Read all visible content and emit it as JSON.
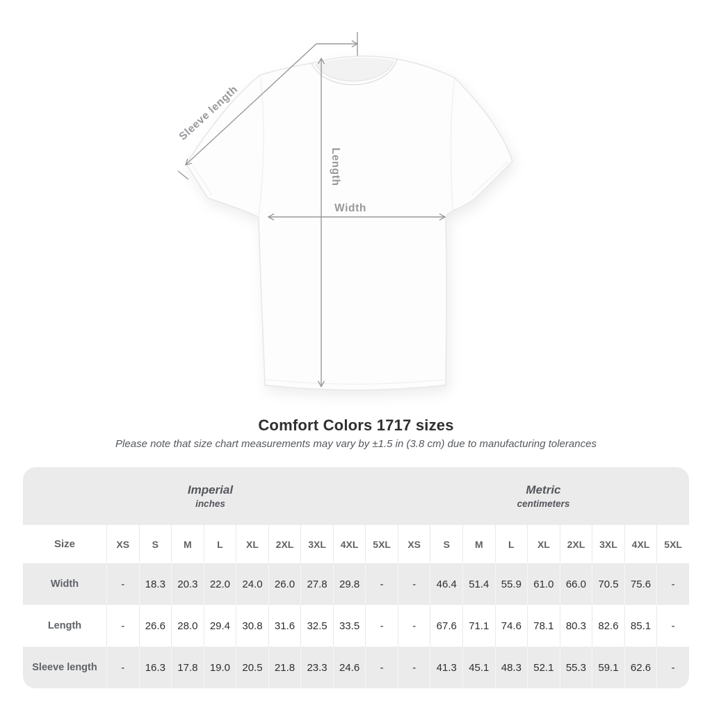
{
  "heading": {
    "title": "Comfort Colors 1717 sizes",
    "subtitle": "Please note that size chart measurements may vary by ±1.5 in (3.8 cm) due to manufacturing tolerances"
  },
  "diagram": {
    "labels": {
      "sleeve_length": "Sleeve length",
      "length": "Length",
      "width": "Width"
    }
  },
  "table": {
    "corner_label": "Size",
    "unit_groups": [
      {
        "name": "Imperial",
        "unit": "inches"
      },
      {
        "name": "Metric",
        "unit": "centimeters"
      }
    ],
    "sizes": [
      "XS",
      "S",
      "M",
      "L",
      "XL",
      "2XL",
      "3XL",
      "4XL",
      "5XL"
    ],
    "rows": [
      {
        "label": "Width",
        "imperial": [
          "-",
          "18.3",
          "20.3",
          "22.0",
          "24.0",
          "26.0",
          "27.8",
          "29.8",
          "-"
        ],
        "metric": [
          "-",
          "46.4",
          "51.4",
          "55.9",
          "61.0",
          "66.0",
          "70.5",
          "75.6",
          "-"
        ]
      },
      {
        "label": "Length",
        "imperial": [
          "-",
          "26.6",
          "28.0",
          "29.4",
          "30.8",
          "31.6",
          "32.5",
          "33.5",
          "-"
        ],
        "metric": [
          "-",
          "67.6",
          "71.1",
          "74.6",
          "78.1",
          "80.3",
          "82.6",
          "85.1",
          "-"
        ]
      },
      {
        "label": "Sleeve length",
        "imperial": [
          "-",
          "16.3",
          "17.8",
          "19.0",
          "20.5",
          "21.8",
          "23.3",
          "24.6",
          "-"
        ],
        "metric": [
          "-",
          "41.3",
          "45.1",
          "48.3",
          "52.1",
          "55.3",
          "59.1",
          "62.6",
          "-"
        ]
      }
    ]
  },
  "colors": {
    "band_gray": "#ebebec",
    "stripe_gray": "#ebebec",
    "muted_text": "#5f6367",
    "value_text": "#2c2e30",
    "arrow_gray": "#98999b",
    "title_text": "#2e2f31"
  }
}
